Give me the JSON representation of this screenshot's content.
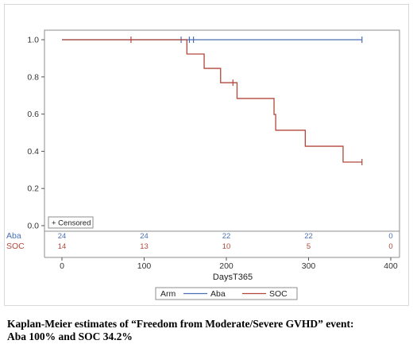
{
  "chart_data": {
    "type": "line",
    "step": true,
    "xlabel": "DaysT365",
    "ylabel": "",
    "xlim": [
      0,
      400
    ],
    "ylim": [
      0.0,
      1.0
    ],
    "x_ticks": [
      "0",
      "100",
      "200",
      "300",
      "400"
    ],
    "y_ticks": [
      "0.0",
      "0.2",
      "0.4",
      "0.6",
      "0.8",
      "1.0"
    ],
    "grid": false,
    "censor_legend": "+ Censored",
    "series": [
      {
        "name": "Aba",
        "color": "#4a6fb5",
        "steps": [
          [
            0,
            1.0
          ],
          [
            365,
            1.0
          ]
        ],
        "censored": [
          [
            145,
            1.0
          ],
          [
            155,
            1.0
          ],
          [
            160,
            1.0
          ],
          [
            365,
            1.0
          ]
        ]
      },
      {
        "name": "SOC",
        "color": "#b0473a",
        "steps": [
          [
            0,
            1.0
          ],
          [
            152,
            1.0
          ],
          [
            152,
            0.923
          ],
          [
            173,
            0.923
          ],
          [
            173,
            0.846
          ],
          [
            193,
            0.846
          ],
          [
            193,
            0.769
          ],
          [
            213,
            0.769
          ],
          [
            213,
            0.684
          ],
          [
            258,
            0.684
          ],
          [
            258,
            0.598
          ],
          [
            260,
            0.598
          ],
          [
            260,
            0.513
          ],
          [
            296,
            0.513
          ],
          [
            296,
            0.427
          ],
          [
            342,
            0.427
          ],
          [
            342,
            0.342
          ],
          [
            365,
            0.342
          ]
        ],
        "censored": [
          [
            84,
            1.0
          ],
          [
            208,
            0.769
          ],
          [
            365,
            0.342
          ]
        ]
      }
    ],
    "at_risk": {
      "times": [
        0,
        100,
        200,
        300,
        400
      ],
      "rows": [
        {
          "label": "Aba",
          "color": "#4a6fb5",
          "values": [
            "24",
            "24",
            "22",
            "22",
            "0"
          ]
        },
        {
          "label": "SOC",
          "color": "#b0473a",
          "values": [
            "14",
            "13",
            "10",
            "5",
            "0"
          ]
        }
      ]
    },
    "legend": {
      "title": "Arm",
      "position": "bottom",
      "items": [
        "Aba",
        "SOC"
      ]
    }
  },
  "caption": {
    "line1": "Kaplan-Meier estimates of “Freedom from Moderate/Severe GVHD” event:",
    "line2": "Aba 100% and SOC 34.2%"
  }
}
